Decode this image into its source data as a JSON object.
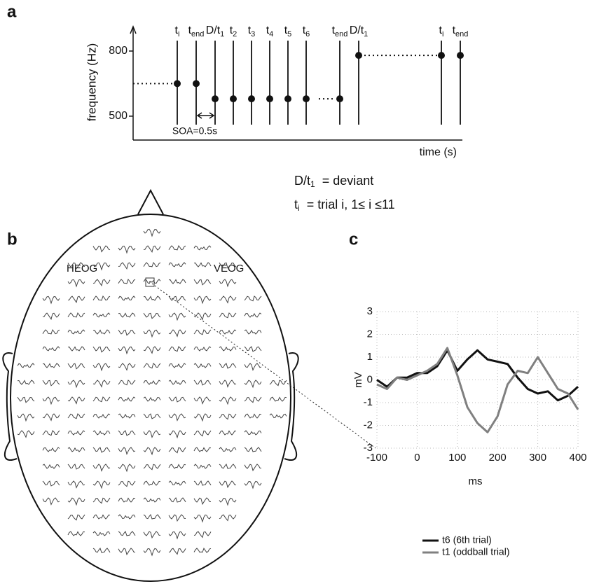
{
  "chart_data": [
    {
      "type": "timeline",
      "panel_label": "a",
      "ylabel": "frequency (Hz)",
      "xlabel": "time (s)",
      "ylim": [
        390,
        890
      ],
      "yticks": [
        500,
        800
      ],
      "events": [
        {
          "label": "t",
          "sub": "i",
          "value": 650
        },
        {
          "label": "t",
          "sub": "end",
          "value": 650
        },
        {
          "label": "D/t",
          "sub": "1",
          "value": 580
        },
        {
          "label": "t",
          "sub": "2",
          "value": 580
        },
        {
          "label": "t",
          "sub": "3",
          "value": 580
        },
        {
          "label": "t",
          "sub": "4",
          "value": 580
        },
        {
          "label": "t",
          "sub": "5",
          "value": 580
        },
        {
          "label": "t",
          "sub": "6",
          "value": 580
        },
        {
          "label": "t",
          "sub": "end",
          "value": 580
        },
        {
          "label": "D/t",
          "sub": "1",
          "value": 780
        },
        {
          "label": "t",
          "sub": "i",
          "value": 780
        },
        {
          "label": "t",
          "sub": "end",
          "value": 780
        }
      ],
      "annotation": "SOA=0.5s",
      "definitions": [
        {
          "term": "D/t",
          "sub": "1",
          "text": "= deviant"
        },
        {
          "term": "t",
          "sub": "i",
          "text": "= trial i,  1≤ i ≤11"
        }
      ]
    },
    {
      "type": "line",
      "panel_label": "c",
      "xlabel": "ms",
      "ylabel": "mV",
      "x": [
        -100,
        -75,
        -50,
        -25,
        0,
        25,
        50,
        75,
        100,
        125,
        150,
        175,
        200,
        225,
        250,
        275,
        300,
        325,
        350,
        375,
        400
      ],
      "xlim": [
        -100,
        400
      ],
      "xticks": [
        -100,
        0,
        100,
        200,
        300,
        400
      ],
      "ylim": [
        -3,
        3
      ],
      "yticks": [
        -3,
        -2,
        -1,
        0,
        1,
        2,
        3
      ],
      "grid": true,
      "series": [
        {
          "name": "t6 (6th trial)",
          "color": "#111111",
          "values": [
            0,
            -0.3,
            0.1,
            0.1,
            0.3,
            0.3,
            0.6,
            1.3,
            0.4,
            0.9,
            1.3,
            0.9,
            0.8,
            0.7,
            0.1,
            -0.4,
            -0.6,
            -0.5,
            -0.9,
            -0.7,
            -0.3
          ]
        },
        {
          "name": "t1 (oddball trial)",
          "color": "#808080",
          "values": [
            -0.2,
            -0.4,
            0.1,
            0.0,
            0.2,
            0.4,
            0.7,
            1.4,
            0.2,
            -1.2,
            -1.9,
            -2.3,
            -1.6,
            -0.2,
            0.4,
            0.3,
            1.0,
            0.3,
            -0.4,
            -0.6,
            -1.3
          ]
        }
      ]
    }
  ],
  "panel_b": {
    "panel_label": "b",
    "electrodes": [
      "HEOG",
      "VEOG"
    ]
  }
}
